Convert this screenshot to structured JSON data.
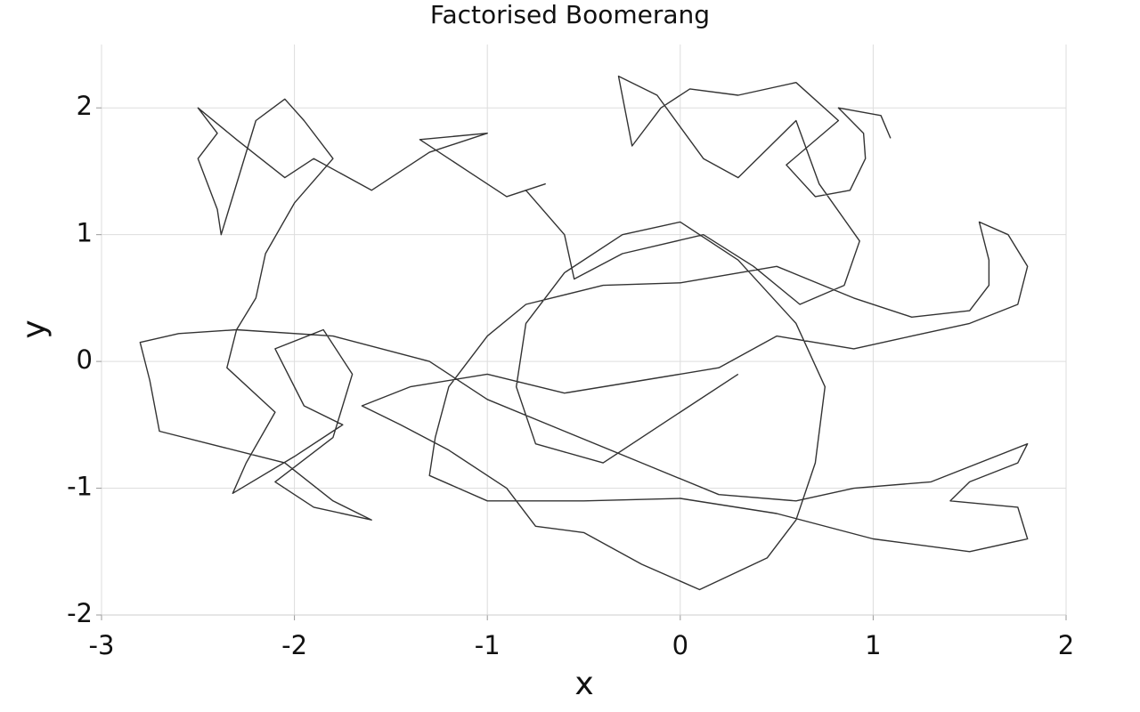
{
  "chart_data": {
    "type": "line",
    "title": "Factorised Boomerang",
    "xlabel": "x",
    "ylabel": "y",
    "x": [
      1.09,
      1.04,
      0.82,
      0.95,
      0.96,
      0.88,
      0.7,
      0.55,
      0.82,
      0.6,
      0.3,
      0.05,
      -0.1,
      -0.25,
      -0.32,
      -0.12,
      0.12,
      0.3,
      0.6,
      0.72,
      0.93,
      0.85,
      0.62,
      0.38,
      0.12,
      -0.3,
      -0.55,
      -0.6,
      -0.8,
      -0.7,
      -0.9,
      -1.1,
      -1.35,
      -1.0,
      -1.3,
      -1.6,
      -1.9,
      -2.05,
      -2.3,
      -2.5,
      -2.4,
      -2.5,
      -2.4,
      -2.38,
      -2.2,
      -2.05,
      -1.95,
      -1.8,
      -2.0,
      -2.15,
      -2.2,
      -2.3,
      -2.35,
      -2.1,
      -2.25,
      -2.32,
      -2.0,
      -1.75,
      -1.95,
      -2.1,
      -1.85,
      -1.7,
      -1.8,
      -2.1,
      -1.9,
      -1.6,
      -1.8,
      -2.05,
      -2.7,
      -2.75,
      -2.8,
      -2.6,
      -2.3,
      -1.8,
      -1.3,
      -1.0,
      -0.6,
      -0.2,
      0.2,
      0.6,
      0.9,
      1.3,
      1.8,
      1.75,
      1.5,
      1.4,
      1.75,
      1.8,
      1.5,
      1.0,
      0.5,
      0.0,
      -0.5,
      -1.0,
      -1.3,
      -1.27,
      -1.2,
      -1.0,
      -0.8,
      -0.4,
      0.0,
      0.5,
      0.9,
      1.2,
      1.5,
      1.6,
      1.6,
      1.55,
      1.7,
      1.8,
      1.75,
      1.5,
      1.2,
      0.9,
      0.5,
      0.2,
      -0.2,
      -0.6,
      -1.0,
      -1.4,
      -1.65,
      -1.45,
      -1.2,
      -0.9,
      -0.75,
      -0.5,
      -0.2,
      0.1,
      0.45,
      0.6,
      0.7,
      0.75,
      0.6,
      0.3,
      0.0,
      -0.3,
      -0.6,
      -0.8,
      -0.85,
      -0.75,
      -0.4,
      -0.1,
      0.3
    ],
    "values": [
      1.76,
      1.94,
      2.0,
      1.8,
      1.6,
      1.35,
      1.3,
      1.55,
      1.9,
      2.2,
      2.1,
      2.15,
      2.0,
      1.7,
      2.25,
      2.1,
      1.6,
      1.45,
      1.9,
      1.4,
      0.95,
      0.6,
      0.45,
      0.75,
      1.0,
      0.85,
      0.65,
      1.0,
      1.35,
      1.4,
      1.3,
      1.5,
      1.75,
      1.8,
      1.65,
      1.35,
      1.6,
      1.45,
      1.75,
      2.0,
      1.8,
      1.6,
      1.2,
      1.0,
      1.9,
      2.07,
      1.9,
      1.6,
      1.25,
      0.85,
      0.5,
      0.25,
      -0.05,
      -0.4,
      -0.8,
      -1.04,
      -0.75,
      -0.5,
      -0.35,
      0.1,
      0.25,
      -0.1,
      -0.6,
      -0.95,
      -1.15,
      -1.25,
      -1.1,
      -0.8,
      -0.55,
      -0.15,
      0.15,
      0.22,
      0.25,
      0.2,
      0.0,
      -0.3,
      -0.55,
      -0.8,
      -1.05,
      -1.1,
      -1.0,
      -0.95,
      -0.65,
      -0.8,
      -0.95,
      -1.1,
      -1.15,
      -1.4,
      -1.5,
      -1.4,
      -1.2,
      -1.08,
      -1.1,
      -1.1,
      -0.9,
      -0.6,
      -0.2,
      0.2,
      0.45,
      0.6,
      0.62,
      0.75,
      0.5,
      0.35,
      0.4,
      0.6,
      0.8,
      1.1,
      1.0,
      0.75,
      0.45,
      0.3,
      0.2,
      0.1,
      0.2,
      -0.05,
      -0.15,
      -0.25,
      -0.1,
      -0.2,
      -0.35,
      -0.5,
      -0.7,
      -1.0,
      -1.3,
      -1.35,
      -1.6,
      -1.8,
      -1.55,
      -1.25,
      -0.8,
      -0.2,
      0.3,
      0.8,
      1.1,
      1.0,
      0.7,
      0.3,
      -0.2,
      -0.65,
      -0.8,
      -0.5,
      -0.1
    ],
    "color": "#333333",
    "xlim": [
      -3,
      2
    ],
    "ylim": [
      -2,
      2.5
    ],
    "xticks": [
      -3,
      -2,
      -1,
      0,
      1,
      2
    ],
    "yticks": [
      -2,
      -1,
      0,
      1,
      2
    ],
    "grid": true
  }
}
